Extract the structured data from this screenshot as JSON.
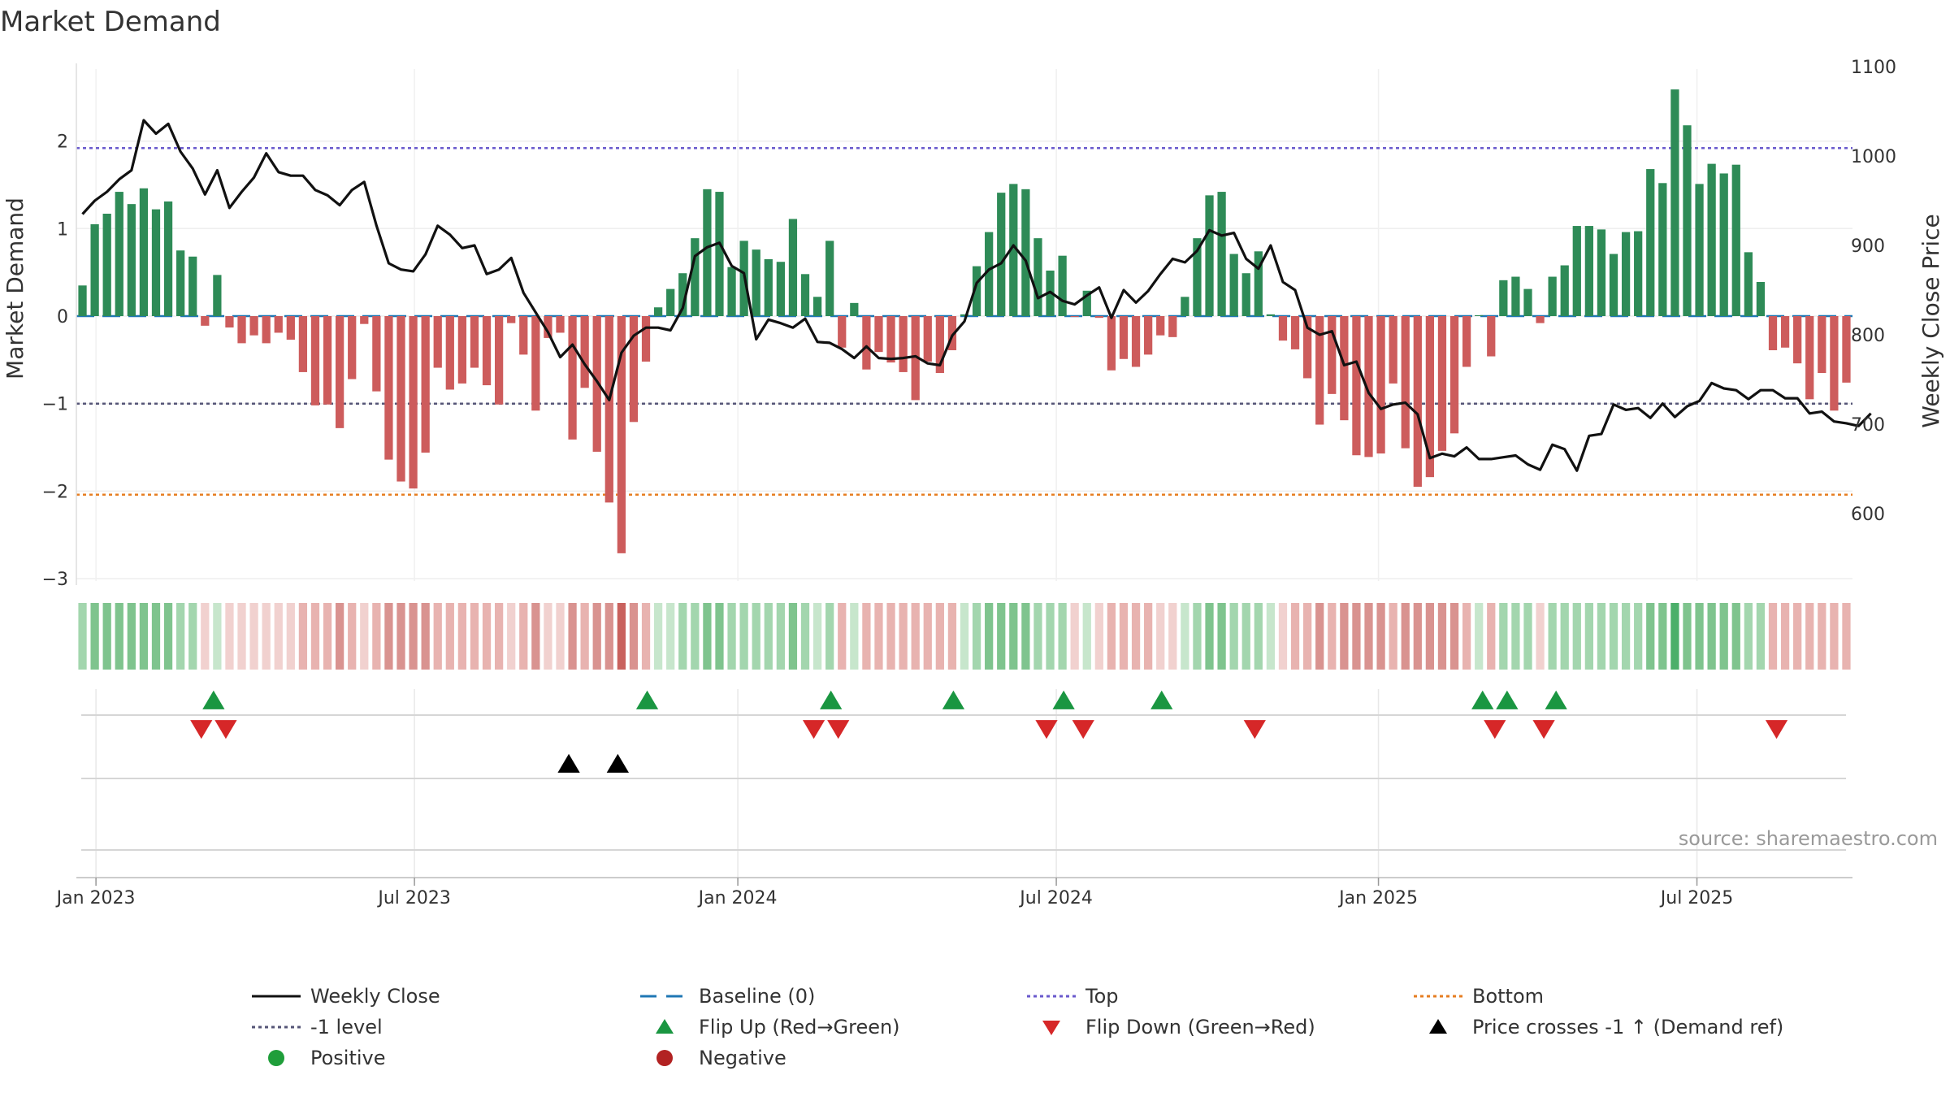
{
  "chart_data": {
    "type": "bar+line",
    "title": "Market Demand",
    "ylabel_left": "Market Demand",
    "ylabel_right": "Weekly Close Price",
    "ylim_left": [
      -3.3,
      2.75
    ],
    "ylim_right": [
      530,
      1100
    ],
    "yticks_left": [
      2,
      1,
      0,
      -1,
      -2,
      -3
    ],
    "ytick_labels_left": [
      "2",
      "1",
      "0",
      "−1",
      "−2",
      "−3"
    ],
    "yticks_right": [
      1100,
      1000,
      900,
      800,
      700,
      600
    ],
    "ytick_labels_right": [
      "1100",
      "1000",
      "900",
      "800",
      "700",
      "600"
    ],
    "x_ticks": [
      {
        "index": 1.6,
        "label": "Jan 2023"
      },
      {
        "index": 27.6,
        "label": "Jul 2023"
      },
      {
        "index": 54,
        "label": "Jan 2024"
      },
      {
        "index": 80,
        "label": "Jul 2024"
      },
      {
        "index": 106.3,
        "label": "Jan 2025"
      },
      {
        "index": 132.3,
        "label": "Jul 2025"
      }
    ],
    "reference_lines": {
      "top": 1.92,
      "minus_one": -1.0,
      "bottom": -2.04,
      "baseline": 0
    },
    "colors": {
      "positive_bar": "#2e8b57",
      "negative_bar": "#cd5c5c",
      "price_line": "#111111",
      "baseline": "#1f77b4",
      "top": "#6a5acd",
      "minus_one": "#555577",
      "bottom": "#e67e22",
      "flip_up": "#1a9641",
      "flip_down": "#d62728",
      "cross": "#000000",
      "positive_dot": "#1f9e3a",
      "negative_dot": "#b22222"
    },
    "series": [
      {
        "name": "Market Demand",
        "type": "bar",
        "values": [
          0.35,
          1.05,
          1.17,
          1.42,
          1.28,
          1.46,
          1.22,
          1.31,
          0.75,
          0.68,
          -0.11,
          0.47,
          -0.13,
          -0.31,
          -0.22,
          -0.31,
          -0.19,
          -0.27,
          -0.64,
          -1.02,
          -1.01,
          -1.28,
          -0.72,
          -0.09,
          -0.86,
          -1.64,
          -1.89,
          -1.97,
          -1.56,
          -0.59,
          -0.84,
          -0.77,
          -0.59,
          -0.79,
          -1.01,
          -0.08,
          -0.44,
          -1.08,
          -0.25,
          -0.19,
          -1.41,
          -0.82,
          -1.55,
          -2.13,
          -2.71,
          -1.21,
          -0.52,
          0.1,
          0.31,
          0.49,
          0.89,
          1.45,
          1.42,
          0.56,
          0.86,
          0.76,
          0.65,
          0.62,
          1.11,
          0.48,
          0.22,
          0.86,
          -0.36,
          0.15,
          -0.61,
          -0.41,
          -0.53,
          -0.64,
          -0.96,
          -0.52,
          -0.65,
          -0.39,
          0.02,
          0.57,
          0.96,
          1.41,
          1.51,
          1.45,
          0.89,
          0.52,
          0.69,
          -0.01,
          0.29,
          -0.02,
          -0.62,
          -0.49,
          -0.58,
          -0.44,
          -0.22,
          -0.24,
          0.22,
          0.89,
          1.38,
          1.42,
          0.71,
          0.49,
          0.74,
          0.02,
          -0.28,
          -0.38,
          -0.71,
          -1.24,
          -0.89,
          -1.19,
          -1.59,
          -1.61,
          -1.57,
          -0.77,
          -1.51,
          -1.95,
          -1.84,
          -1.54,
          -1.34,
          -0.58,
          0.01,
          -0.46,
          0.41,
          0.45,
          0.31,
          -0.08,
          0.45,
          0.58,
          1.03,
          1.03,
          0.99,
          0.71,
          0.96,
          0.97,
          1.68,
          1.52,
          2.59,
          2.18,
          1.51,
          1.74,
          1.63,
          1.73,
          0.73,
          0.39,
          -0.39,
          -0.36,
          -0.54,
          -0.95,
          -0.65,
          -1.08,
          -0.76
        ]
      },
      {
        "name": "Weekly Close",
        "type": "line",
        "values": [
          935,
          950,
          960,
          974,
          984,
          1040,
          1025,
          1036,
          1005,
          986,
          957,
          984,
          942,
          960,
          976,
          1003,
          982,
          978,
          978,
          962,
          956,
          945,
          962,
          971,
          922,
          880,
          873,
          871,
          890,
          922,
          912,
          897,
          900,
          868,
          873,
          886,
          847,
          825,
          803,
          775,
          789,
          767,
          748,
          727,
          780,
          799,
          808,
          808,
          805,
          830,
          888,
          898,
          903,
          877,
          869,
          795,
          817,
          813,
          808,
          818,
          792,
          791,
          784,
          774,
          787,
          774,
          773,
          774,
          776,
          768,
          766,
          799,
          815,
          858,
          873,
          880,
          900,
          883,
          841,
          848,
          838,
          834,
          844,
          853,
          819,
          850,
          836,
          849,
          868,
          885,
          881,
          894,
          917,
          911,
          914,
          885,
          874,
          900,
          859,
          850,
          808,
          800,
          804,
          766,
          770,
          735,
          717,
          722,
          724,
          711,
          662,
          667,
          664,
          674,
          661,
          661,
          663,
          665,
          655,
          649,
          677,
          672,
          648,
          687,
          689,
          722,
          716,
          718,
          707,
          723,
          708,
          720,
          726,
          746,
          740,
          738,
          728,
          738,
          738,
          729,
          729,
          712,
          714,
          703,
          701,
          698,
          712
        ]
      }
    ],
    "band_levels": [
      2,
      3,
      3,
      3,
      3,
      3,
      3,
      3,
      2,
      2,
      -1,
      1,
      -1,
      -1,
      -1,
      -1,
      -1,
      -1,
      -2,
      -2,
      -2,
      -3,
      -2,
      -1,
      -2,
      -3,
      -3,
      -3,
      -3,
      -2,
      -2,
      -2,
      -2,
      -2,
      -2,
      -1,
      -2,
      -3,
      -1,
      -1,
      -3,
      -2,
      -3,
      -3,
      -4,
      -3,
      -2,
      1,
      1,
      2,
      2,
      3,
      3,
      2,
      2,
      2,
      2,
      2,
      3,
      2,
      1,
      2,
      -2,
      1,
      -2,
      -2,
      -2,
      -2,
      -2,
      -2,
      -2,
      -2,
      1,
      2,
      3,
      3,
      3,
      3,
      2,
      2,
      2,
      -1,
      1,
      -1,
      -2,
      -2,
      -2,
      -2,
      -1,
      -1,
      1,
      2,
      3,
      3,
      2,
      2,
      2,
      1,
      -1,
      -2,
      -2,
      -3,
      -2,
      -3,
      -3,
      -3,
      -3,
      -2,
      -3,
      -3,
      -3,
      -3,
      -3,
      -2,
      1,
      -2,
      2,
      2,
      2,
      -1,
      2,
      2,
      2,
      2,
      2,
      2,
      2,
      2,
      3,
      3,
      4,
      3,
      3,
      3,
      3,
      3,
      2,
      2,
      -2,
      -2,
      -2,
      -2,
      -2,
      -2,
      -2
    ],
    "markers": {
      "flip_up": [
        11.2,
        46.6,
        61.6,
        71.6,
        80.6,
        88.6,
        114.8,
        116.8,
        120.8
      ],
      "flip_down": [
        10.2,
        12.2,
        60.2,
        62.2,
        79.2,
        82.2,
        96.2,
        115.8,
        119.8,
        138.8
      ],
      "cross_up": [
        40.2,
        44.2
      ]
    },
    "legend": [
      {
        "label": "Weekly Close",
        "symbol": "solid-line",
        "color": "#111111"
      },
      {
        "label": "Baseline (0)",
        "symbol": "dash-line",
        "color": "#1f77b4"
      },
      {
        "label": "Top",
        "symbol": "dot-line",
        "color": "#6a5acd"
      },
      {
        "label": "Bottom",
        "symbol": "dot-line",
        "color": "#e67e22"
      },
      {
        "label": "-1 level",
        "symbol": "dot-line",
        "color": "#555577"
      },
      {
        "label": "Flip Up (Red→Green)",
        "symbol": "triangle-up",
        "color": "#1a9641"
      },
      {
        "label": "Flip Down (Green→Red)",
        "symbol": "triangle-down",
        "color": "#d62728"
      },
      {
        "label": "Price crosses -1 ↑ (Demand ref)",
        "symbol": "triangle-up",
        "color": "#000000"
      },
      {
        "label": "Positive",
        "symbol": "circle",
        "color": "#1f9e3a"
      },
      {
        "label": "Negative",
        "symbol": "circle",
        "color": "#b22222"
      }
    ],
    "source": "source: sharemaestro.com"
  }
}
